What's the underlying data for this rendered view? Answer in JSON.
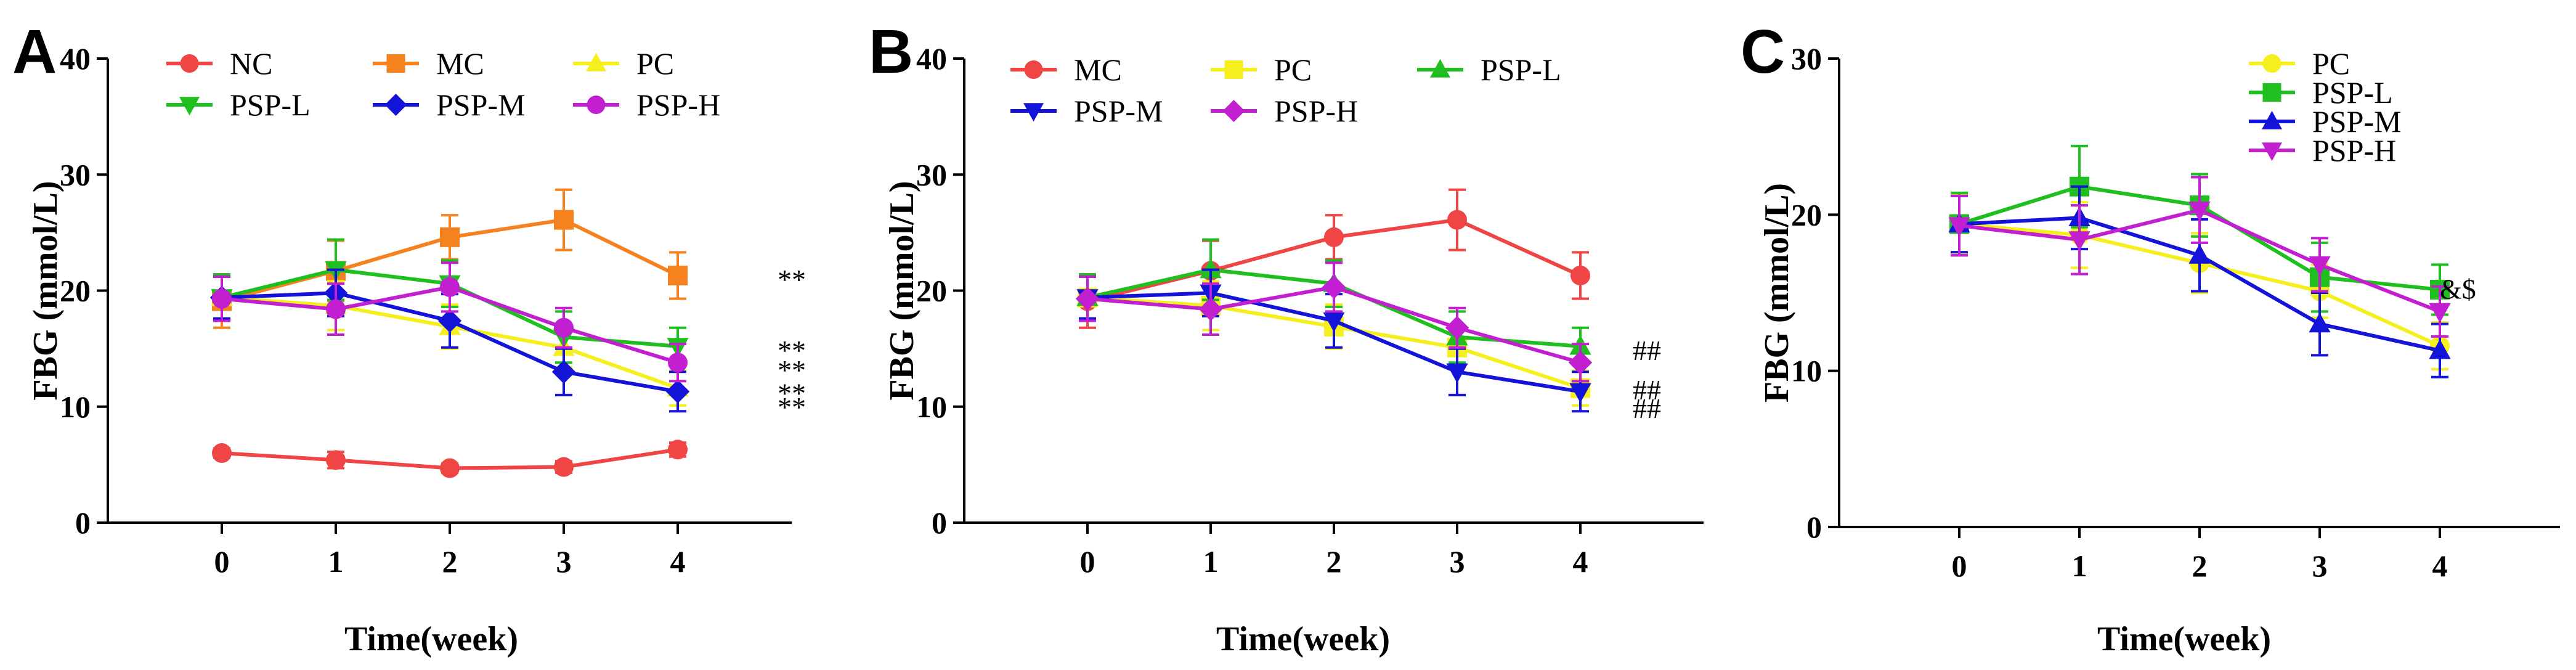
{
  "figure": {
    "panels": [
      {
        "letter": "A",
        "annotations": [
          "**",
          "**",
          "**",
          "**",
          "**"
        ]
      },
      {
        "letter": "B",
        "annotations": [
          "##",
          "##",
          "##"
        ]
      },
      {
        "letter": "C",
        "annotations": [
          "&$"
        ]
      }
    ]
  },
  "chart_data": [
    {
      "type": "line",
      "title": "A",
      "xlabel": "Time(week)",
      "ylabel": "FBG (mmol/L)",
      "x": [
        0,
        1,
        2,
        3,
        4
      ],
      "xlim": [
        -1,
        5
      ],
      "ylim": [
        0,
        40
      ],
      "yticks": [
        0,
        10,
        20,
        30,
        40
      ],
      "legend": "top",
      "series": [
        {
          "name": "NC",
          "color": "#f04545",
          "marker": "circle",
          "values": [
            6.0,
            5.4,
            4.7,
            4.8,
            6.3
          ],
          "errors": [
            0.4,
            0.7,
            0.4,
            0.5,
            0.6
          ]
        },
        {
          "name": "MC",
          "color": "#f5821f",
          "marker": "square",
          "values": [
            19.1,
            21.7,
            24.6,
            26.1,
            21.3
          ],
          "errors": [
            2.3,
            2.6,
            1.9,
            2.6,
            2.0
          ]
        },
        {
          "name": "PC",
          "color": "#f5ef1e",
          "marker": "triangle-up",
          "values": [
            19.4,
            18.7,
            16.9,
            15.1,
            11.6
          ],
          "errors": [
            1.9,
            2.1,
            1.9,
            1.7,
            1.5
          ]
        },
        {
          "name": "PSP-L",
          "color": "#1fbf1f",
          "marker": "triangle-down",
          "values": [
            19.4,
            21.8,
            20.6,
            16.0,
            15.2
          ],
          "errors": [
            2.0,
            2.6,
            2.0,
            2.2,
            1.6
          ]
        },
        {
          "name": "PSP-M",
          "color": "#1414d9",
          "marker": "diamond",
          "values": [
            19.4,
            19.8,
            17.4,
            13.0,
            11.3
          ],
          "errors": [
            1.8,
            2.0,
            2.3,
            2.0,
            1.7
          ]
        },
        {
          "name": "PSP-H",
          "color": "#c21fd1",
          "marker": "circle",
          "values": [
            19.3,
            18.4,
            20.3,
            16.8,
            13.8
          ],
          "errors": [
            1.9,
            2.2,
            2.1,
            1.7,
            1.6
          ]
        }
      ],
      "annotations": [
        {
          "text": "**",
          "x": 4,
          "y": 21.3
        },
        {
          "text": "**",
          "x": 4,
          "y": 15.2
        },
        {
          "text": "**",
          "x": 4,
          "y": 13.5
        },
        {
          "text": "**",
          "x": 4,
          "y": 11.5
        },
        {
          "text": "**",
          "x": 4,
          "y": 10.3
        }
      ]
    },
    {
      "type": "line",
      "title": "B",
      "xlabel": "Time(week)",
      "ylabel": "FBG (mmol/L)",
      "x": [
        0,
        1,
        2,
        3,
        4
      ],
      "xlim": [
        -1,
        5
      ],
      "ylim": [
        0,
        40
      ],
      "yticks": [
        0,
        10,
        20,
        30,
        40
      ],
      "legend": "top",
      "series": [
        {
          "name": "MC",
          "color": "#f04545",
          "marker": "circle",
          "values": [
            19.1,
            21.7,
            24.6,
            26.1,
            21.3
          ],
          "errors": [
            2.3,
            2.6,
            1.9,
            2.6,
            2.0
          ]
        },
        {
          "name": "PC",
          "color": "#f5ef1e",
          "marker": "square",
          "values": [
            19.4,
            18.7,
            16.9,
            15.1,
            11.6
          ],
          "errors": [
            1.9,
            2.1,
            1.9,
            1.7,
            1.5
          ]
        },
        {
          "name": "PSP-L",
          "color": "#1fbf1f",
          "marker": "triangle-up",
          "values": [
            19.4,
            21.8,
            20.6,
            16.0,
            15.2
          ],
          "errors": [
            2.0,
            2.6,
            2.0,
            2.2,
            1.6
          ]
        },
        {
          "name": "PSP-M",
          "color": "#1414d9",
          "marker": "triangle-down",
          "values": [
            19.4,
            19.8,
            17.4,
            13.0,
            11.3
          ],
          "errors": [
            1.8,
            2.0,
            2.3,
            2.0,
            1.7
          ]
        },
        {
          "name": "PSP-H",
          "color": "#c21fd1",
          "marker": "diamond",
          "values": [
            19.3,
            18.4,
            20.3,
            16.8,
            13.8
          ],
          "errors": [
            1.9,
            2.2,
            2.1,
            1.7,
            1.6
          ]
        }
      ],
      "annotations": [
        {
          "text": "##",
          "x": 4,
          "y": 15.2
        },
        {
          "text": "##",
          "x": 4,
          "y": 11.8
        },
        {
          "text": "##",
          "x": 4,
          "y": 10.2
        }
      ]
    },
    {
      "type": "line",
      "title": "C",
      "xlabel": "Time(week)",
      "ylabel": "FBG (mmol/L)",
      "x": [
        0,
        1,
        2,
        3,
        4
      ],
      "xlim": [
        -1,
        5
      ],
      "ylim": [
        0,
        30
      ],
      "yticks": [
        0,
        10,
        20,
        30
      ],
      "legend": "top-right",
      "series": [
        {
          "name": "PC",
          "color": "#f5ef1e",
          "marker": "circle",
          "values": [
            19.4,
            18.7,
            16.9,
            15.1,
            11.6
          ],
          "errors": [
            1.9,
            2.1,
            1.9,
            1.7,
            1.5
          ]
        },
        {
          "name": "PSP-L",
          "color": "#1fbf1f",
          "marker": "square",
          "values": [
            19.4,
            21.8,
            20.6,
            16.0,
            15.2
          ],
          "errors": [
            2.0,
            2.6,
            2.0,
            2.2,
            1.6
          ]
        },
        {
          "name": "PSP-M",
          "color": "#1414d9",
          "marker": "triangle-up",
          "values": [
            19.4,
            19.8,
            17.4,
            13.0,
            11.3
          ],
          "errors": [
            1.8,
            2.0,
            2.3,
            2.0,
            1.7
          ]
        },
        {
          "name": "PSP-H",
          "color": "#c21fd1",
          "marker": "triangle-down",
          "values": [
            19.3,
            18.4,
            20.3,
            16.8,
            13.8
          ],
          "errors": [
            1.9,
            2.2,
            2.1,
            1.7,
            1.6
          ]
        }
      ],
      "annotations": [
        {
          "text": "&$",
          "x": 4,
          "y": 15.5
        }
      ]
    }
  ]
}
